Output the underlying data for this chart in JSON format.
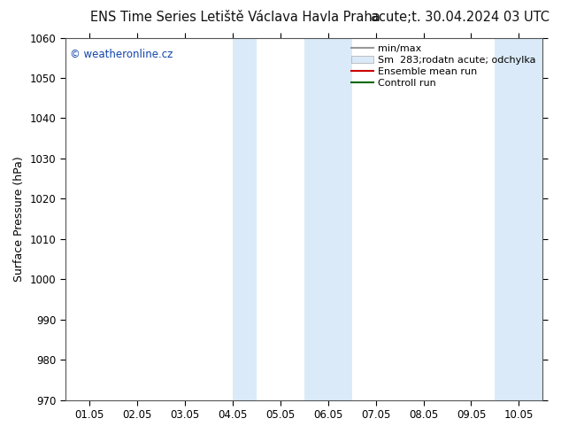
{
  "title_left": "ENS Time Series Letiště Václava Havla Praha",
  "title_right": "acute;t. 30.04.2024 03 UTC",
  "ylabel": "Surface Pressure (hPa)",
  "ylim": [
    970,
    1060
  ],
  "yticks": [
    970,
    980,
    990,
    1000,
    1010,
    1020,
    1030,
    1040,
    1050,
    1060
  ],
  "xtick_labels": [
    "01.05",
    "02.05",
    "03.05",
    "04.05",
    "05.05",
    "06.05",
    "07.05",
    "08.05",
    "09.05",
    "10.05"
  ],
  "xtick_positions": [
    0,
    1,
    2,
    3,
    4,
    5,
    6,
    7,
    8,
    9
  ],
  "xlim": [
    -0.5,
    9.5
  ],
  "shaded_bands": [
    {
      "xmin": 3.0,
      "xmax": 3.5,
      "color": "#daeaf8"
    },
    {
      "xmin": 4.5,
      "xmax": 5.5,
      "color": "#daeaf8"
    },
    {
      "xmin": 8.5,
      "xmax": 9.0,
      "color": "#daeaf8"
    },
    {
      "xmin": 9.0,
      "xmax": 9.5,
      "color": "#daeaf8"
    }
  ],
  "watermark_text": "© weatheronline.cz",
  "watermark_color": "#1144aa",
  "legend_entries": [
    {
      "label": "min/max",
      "color": "#999999",
      "type": "line"
    },
    {
      "label": "Sm  283;rodatn acute; odchylka",
      "color": "#daeaf8",
      "type": "patch"
    },
    {
      "label": "Ensemble mean run",
      "color": "#cc0000",
      "type": "line"
    },
    {
      "label": "Controll run",
      "color": "#006600",
      "type": "line"
    }
  ],
  "background_color": "#ffffff",
  "title_fontsize": 10.5,
  "tick_fontsize": 8.5,
  "ylabel_fontsize": 9,
  "legend_fontsize": 8
}
